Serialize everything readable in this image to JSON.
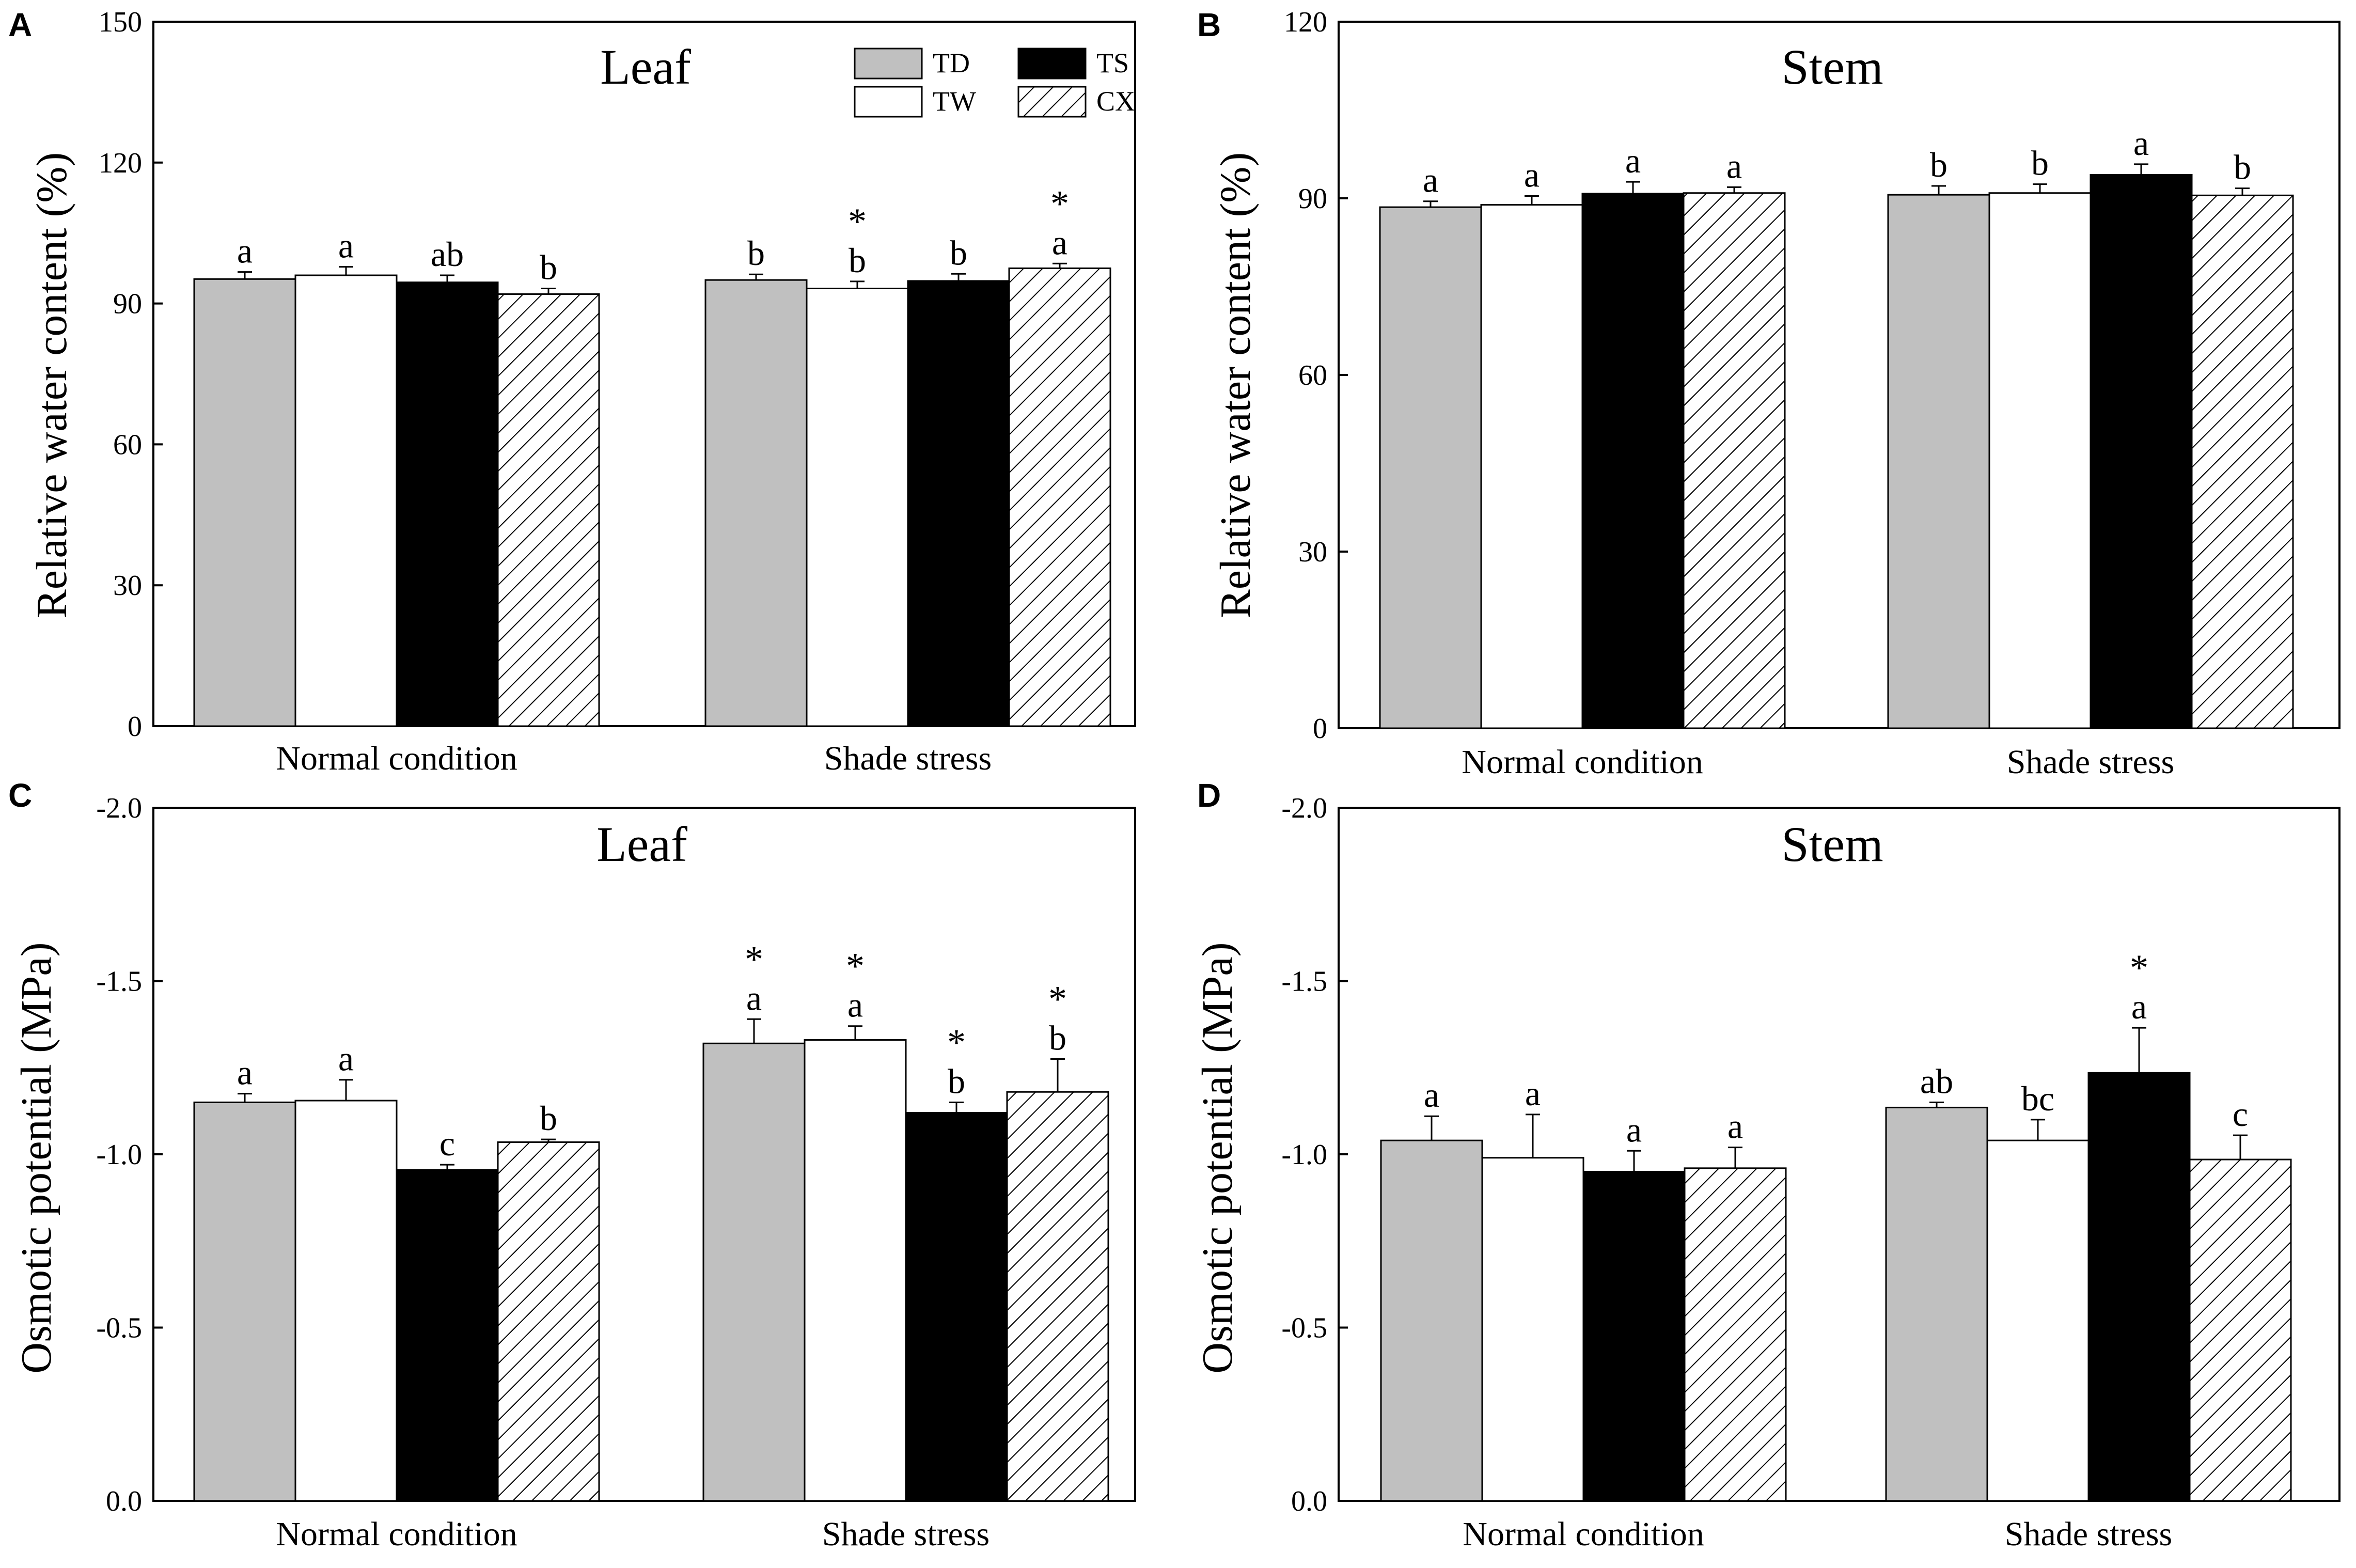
{
  "figure": {
    "legend": [
      {
        "name": "TD",
        "fill": "gray"
      },
      {
        "name": "TS",
        "fill": "black"
      },
      {
        "name": "TW",
        "fill": "white"
      },
      {
        "name": "CX",
        "fill": "hatch"
      }
    ],
    "colors": {
      "gray": "#c0c0c0",
      "black": "#000000",
      "white": "#ffffff",
      "stroke": "#000000"
    }
  },
  "chart_data": [
    {
      "panel": "A",
      "type": "bar",
      "title": "Leaf",
      "xlabel": "",
      "ylabel": "Relative water content (%)",
      "ylim": [
        0,
        150
      ],
      "yticks": [
        0,
        30,
        60,
        90,
        120,
        150
      ],
      "ytick_labels": [
        "0",
        "30",
        "60",
        "90",
        "120",
        "150"
      ],
      "categories": [
        "Normal condition",
        "Shade stress"
      ],
      "series": [
        {
          "name": "TD",
          "values": [
            95.2,
            95.0
          ],
          "errors": [
            1.5,
            1.2
          ],
          "letters": [
            "a",
            "b"
          ],
          "stars": [
            "",
            ""
          ]
        },
        {
          "name": "TW",
          "values": [
            96.0,
            93.2
          ],
          "errors": [
            1.8,
            1.5
          ],
          "letters": [
            "a",
            "b"
          ],
          "stars": [
            "",
            "*"
          ]
        },
        {
          "name": "TS",
          "values": [
            94.5,
            94.8
          ],
          "errors": [
            1.5,
            1.5
          ],
          "letters": [
            "ab",
            "b"
          ],
          "stars": [
            "",
            ""
          ]
        },
        {
          "name": "CX",
          "values": [
            92.0,
            97.5
          ],
          "errors": [
            1.2,
            1.0
          ],
          "letters": [
            "b",
            "a"
          ],
          "stars": [
            "",
            "*"
          ]
        }
      ]
    },
    {
      "panel": "B",
      "type": "bar",
      "title": "Stem",
      "xlabel": "",
      "ylabel": "Relative water content (%)",
      "ylim": [
        0,
        120
      ],
      "yticks": [
        0,
        30,
        60,
        90,
        120
      ],
      "ytick_labels": [
        "0",
        "30",
        "60",
        "90",
        "120"
      ],
      "categories": [
        "Normal condition",
        "Shade stress"
      ],
      "series": [
        {
          "name": "TD",
          "values": [
            88.5,
            90.6
          ],
          "errors": [
            1.0,
            1.5
          ],
          "letters": [
            "a",
            "b"
          ],
          "stars": [
            "",
            ""
          ]
        },
        {
          "name": "TW",
          "values": [
            88.9,
            90.9
          ],
          "errors": [
            1.5,
            1.5
          ],
          "letters": [
            "a",
            "b"
          ],
          "stars": [
            "",
            ""
          ]
        },
        {
          "name": "TS",
          "values": [
            90.8,
            94.0
          ],
          "errors": [
            2.0,
            1.8
          ],
          "letters": [
            "a",
            "a"
          ],
          "stars": [
            "",
            ""
          ]
        },
        {
          "name": "CX",
          "values": [
            90.9,
            90.5
          ],
          "errors": [
            1.0,
            1.2
          ],
          "letters": [
            "a",
            "b"
          ],
          "stars": [
            "",
            ""
          ]
        }
      ]
    },
    {
      "panel": "C",
      "type": "bar",
      "title": "Leaf",
      "xlabel": "",
      "ylabel": "Osmotic potential (MPa)",
      "ylim": [
        0,
        -2.0
      ],
      "yticks": [
        0,
        -0.5,
        -1.0,
        -1.5,
        -2.0
      ],
      "ytick_labels": [
        "0.0",
        "-0.5",
        "-1.0",
        "-1.5",
        "-2.0"
      ],
      "categories": [
        "Normal condition",
        "Shade stress"
      ],
      "series": [
        {
          "name": "TD",
          "values": [
            -1.15,
            -1.32
          ],
          "errors": [
            0.025,
            0.07
          ],
          "letters": [
            "a",
            "a"
          ],
          "stars": [
            "",
            "*"
          ]
        },
        {
          "name": "TW",
          "values": [
            -1.155,
            -1.33
          ],
          "errors": [
            0.06,
            0.04
          ],
          "letters": [
            "a",
            "a"
          ],
          "stars": [
            "",
            "*"
          ]
        },
        {
          "name": "TS",
          "values": [
            -0.955,
            -1.12
          ],
          "errors": [
            0.015,
            0.03
          ],
          "letters": [
            "c",
            "b"
          ],
          "stars": [
            "",
            "*"
          ]
        },
        {
          "name": "CX",
          "values": [
            -1.035,
            -1.18
          ],
          "errors": [
            0.008,
            0.095
          ],
          "letters": [
            "b",
            "b"
          ],
          "stars": [
            "",
            "*"
          ]
        }
      ]
    },
    {
      "panel": "D",
      "type": "bar",
      "title": "Stem",
      "xlabel": "",
      "ylabel": "Osmotic potential (MPa)",
      "ylim": [
        0,
        -2.0
      ],
      "yticks": [
        0,
        -0.5,
        -1.0,
        -1.5,
        -2.0
      ],
      "ytick_labels": [
        "0.0",
        "-0.5",
        "-1.0",
        "-1.5",
        "-2.0"
      ],
      "categories": [
        "Normal condition",
        "Shade stress"
      ],
      "series": [
        {
          "name": "TD",
          "values": [
            -1.04,
            -1.135
          ],
          "errors": [
            0.07,
            0.015
          ],
          "letters": [
            "a",
            "ab"
          ],
          "stars": [
            "",
            ""
          ]
        },
        {
          "name": "TW",
          "values": [
            -0.99,
            -1.04
          ],
          "errors": [
            0.125,
            0.06
          ],
          "letters": [
            "a",
            "bc"
          ],
          "stars": [
            "",
            ""
          ]
        },
        {
          "name": "TS",
          "values": [
            -0.95,
            -1.235
          ],
          "errors": [
            0.06,
            0.13
          ],
          "letters": [
            "a",
            "a"
          ],
          "stars": [
            "",
            "*"
          ]
        },
        {
          "name": "CX",
          "values": [
            -0.96,
            -0.985
          ],
          "errors": [
            0.06,
            0.07
          ],
          "letters": [
            "a",
            "c"
          ],
          "stars": [
            "",
            ""
          ]
        }
      ]
    }
  ]
}
